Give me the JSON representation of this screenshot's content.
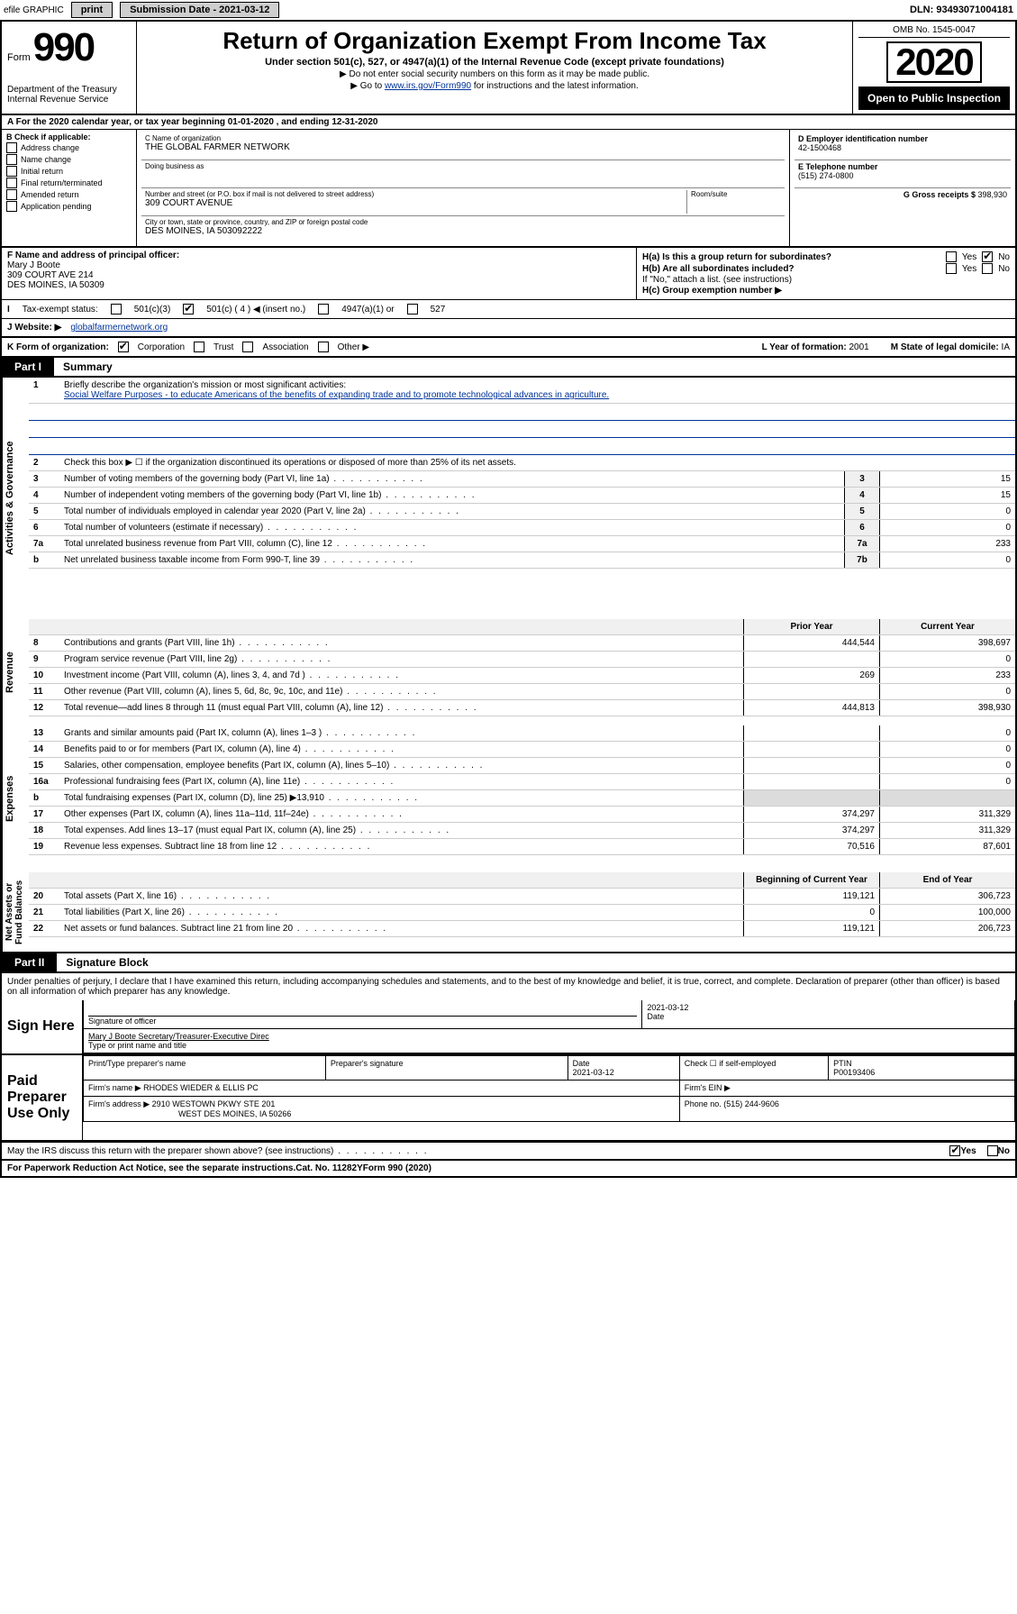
{
  "topbar": {
    "efile": "efile GRAPHIC",
    "print": "print",
    "submission": "Submission Date - 2021-03-12",
    "dln": "DLN: 93493071004181"
  },
  "header": {
    "form_label": "Form",
    "form_number": "990",
    "dept": "Department of the Treasury\nInternal Revenue Service",
    "title": "Return of Organization Exempt From Income Tax",
    "subtitle": "Under section 501(c), 527, or 4947(a)(1) of the Internal Revenue Code (except private foundations)",
    "note1": "Do not enter social security numbers on this form as it may be made public.",
    "note2_pre": "Go to ",
    "note2_link": "www.irs.gov/Form990",
    "note2_post": " for instructions and the latest information.",
    "omb": "OMB No. 1545-0047",
    "year": "2020",
    "public": "Open to Public Inspection"
  },
  "lineA": "A For the 2020 calendar year, or tax year beginning 01-01-2020   , and ending 12-31-2020",
  "sectionB": {
    "hdr": "B Check if applicable:",
    "opts": [
      "Address change",
      "Name change",
      "Initial return",
      "Final return/terminated",
      "Amended return",
      "Application pending"
    ],
    "c_name_lbl": "C Name of organization",
    "c_name": "THE GLOBAL FARMER NETWORK",
    "dba_lbl": "Doing business as",
    "street_lbl": "Number and street (or P.O. box if mail is not delivered to street address)",
    "room_lbl": "Room/suite",
    "street": "309 COURT AVENUE",
    "city_lbl": "City or town, state or province, country, and ZIP or foreign postal code",
    "city": "DES MOINES, IA  503092222",
    "d_lbl": "D Employer identification number",
    "d_val": "42-1500468",
    "e_lbl": "E Telephone number",
    "e_val": "(515) 274-0800",
    "g_lbl": "G Gross receipts $ ",
    "g_val": "398,930"
  },
  "rowF": {
    "f_lbl": "F  Name and address of principal officer:",
    "f_name": "Mary J Boote",
    "f_addr1": "309 COURT AVE 214",
    "f_addr2": "DES MOINES, IA  50309",
    "ha": "H(a)  Is this a group return for subordinates?",
    "ha_yes": "Yes",
    "ha_no": "No",
    "hb": "H(b)  Are all subordinates included?",
    "hb_note": "If \"No,\" attach a list. (see instructions)",
    "hc": "H(c)  Group exemption number ▶"
  },
  "rowI": {
    "label": "Tax-exempt status:",
    "o1": "501(c)(3)",
    "o2": "501(c) ( 4 ) ◀ (insert no.)",
    "o3": "4947(a)(1) or",
    "o4": "527"
  },
  "rowJ": {
    "label": "J    Website: ▶",
    "val": "globalfarmernetwork.org"
  },
  "rowK": {
    "label": "K Form of organization:",
    "o1": "Corporation",
    "o2": "Trust",
    "o3": "Association",
    "o4": "Other ▶",
    "l_lbl": "L Year of formation: ",
    "l_val": "2001",
    "m_lbl": "M State of legal domicile: ",
    "m_val": "IA"
  },
  "part1": {
    "tab": "Part I",
    "title": "Summary",
    "l1_lbl": "Briefly describe the organization's mission or most significant activities:",
    "l1_val": "Social Welfare Purposes - to educate Americans of the benefits of expanding trade and to promote technological advances in agriculture.",
    "l2": "Check this box ▶ ☐  if the organization discontinued its operations or disposed of more than 25% of its net assets.",
    "rows_gov": [
      {
        "n": "3",
        "t": "Number of voting members of the governing body (Part VI, line 1a)",
        "k": "3",
        "v": "15"
      },
      {
        "n": "4",
        "t": "Number of independent voting members of the governing body (Part VI, line 1b)",
        "k": "4",
        "v": "15"
      },
      {
        "n": "5",
        "t": "Total number of individuals employed in calendar year 2020 (Part V, line 2a)",
        "k": "5",
        "v": "0"
      },
      {
        "n": "6",
        "t": "Total number of volunteers (estimate if necessary)",
        "k": "6",
        "v": "0"
      },
      {
        "n": "7a",
        "t": "Total unrelated business revenue from Part VIII, column (C), line 12",
        "k": "7a",
        "v": "233"
      },
      {
        "n": "b",
        "t": "Net unrelated business taxable income from Form 990-T, line 39",
        "k": "7b",
        "v": "0"
      }
    ],
    "col_prior": "Prior Year",
    "col_curr": "Current Year",
    "rows_rev": [
      {
        "n": "8",
        "t": "Contributions and grants (Part VIII, line 1h)",
        "p": "444,544",
        "c": "398,697"
      },
      {
        "n": "9",
        "t": "Program service revenue (Part VIII, line 2g)",
        "p": "",
        "c": "0"
      },
      {
        "n": "10",
        "t": "Investment income (Part VIII, column (A), lines 3, 4, and 7d )",
        "p": "269",
        "c": "233"
      },
      {
        "n": "11",
        "t": "Other revenue (Part VIII, column (A), lines 5, 6d, 8c, 9c, 10c, and 11e)",
        "p": "",
        "c": "0"
      },
      {
        "n": "12",
        "t": "Total revenue—add lines 8 through 11 (must equal Part VIII, column (A), line 12)",
        "p": "444,813",
        "c": "398,930"
      }
    ],
    "rows_exp": [
      {
        "n": "13",
        "t": "Grants and similar amounts paid (Part IX, column (A), lines 1–3 )",
        "p": "",
        "c": "0"
      },
      {
        "n": "14",
        "t": "Benefits paid to or for members (Part IX, column (A), line 4)",
        "p": "",
        "c": "0"
      },
      {
        "n": "15",
        "t": "Salaries, other compensation, employee benefits (Part IX, column (A), lines 5–10)",
        "p": "",
        "c": "0"
      },
      {
        "n": "16a",
        "t": "Professional fundraising fees (Part IX, column (A), line 11e)",
        "p": "",
        "c": "0"
      },
      {
        "n": "b",
        "t": "Total fundraising expenses (Part IX, column (D), line 25) ▶13,910",
        "p": "gray",
        "c": "gray"
      },
      {
        "n": "17",
        "t": "Other expenses (Part IX, column (A), lines 11a–11d, 11f–24e)",
        "p": "374,297",
        "c": "311,329"
      },
      {
        "n": "18",
        "t": "Total expenses. Add lines 13–17 (must equal Part IX, column (A), line 25)",
        "p": "374,297",
        "c": "311,329"
      },
      {
        "n": "19",
        "t": "Revenue less expenses. Subtract line 18 from line 12",
        "p": "70,516",
        "c": "87,601"
      }
    ],
    "col_beg": "Beginning of Current Year",
    "col_end": "End of Year",
    "rows_net": [
      {
        "n": "20",
        "t": "Total assets (Part X, line 16)",
        "p": "119,121",
        "c": "306,723"
      },
      {
        "n": "21",
        "t": "Total liabilities (Part X, line 26)",
        "p": "0",
        "c": "100,000"
      },
      {
        "n": "22",
        "t": "Net assets or fund balances. Subtract line 21 from line 20",
        "p": "119,121",
        "c": "206,723"
      }
    ],
    "vlab_gov": "Activities & Governance",
    "vlab_rev": "Revenue",
    "vlab_exp": "Expenses",
    "vlab_net": "Net Assets or Fund Balances"
  },
  "part2": {
    "tab": "Part II",
    "title": "Signature Block",
    "decl": "Under penalties of perjury, I declare that I have examined this return, including accompanying schedules and statements, and to the best of my knowledge and belief, it is true, correct, and complete. Declaration of preparer (other than officer) is based on all information of which preparer has any knowledge.",
    "sign_here": "Sign Here",
    "sig_officer": "Signature of officer",
    "sig_date": "2021-03-12",
    "date_lbl": "Date",
    "officer_name": "Mary J Boote  Secretary/Treasurer-Executive Direc",
    "type_name": "Type or print name and title",
    "paid": "Paid Preparer Use Only",
    "prep_name_lbl": "Print/Type preparer's name",
    "prep_sig_lbl": "Preparer's signature",
    "prep_date_lbl": "Date",
    "prep_date": "2021-03-12",
    "check_self": "Check ☐ if self-employed",
    "ptin_lbl": "PTIN",
    "ptin": "P00193406",
    "firm_name_lbl": "Firm's name   ▶",
    "firm_name": "RHODES WIEDER & ELLIS PC",
    "firm_ein_lbl": "Firm's EIN ▶",
    "firm_addr_lbl": "Firm's address ▶",
    "firm_addr1": "2910 WESTOWN PKWY STE 201",
    "firm_addr2": "WEST DES MOINES, IA  50266",
    "phone_lbl": "Phone no. ",
    "phone": "(515) 244-9606"
  },
  "footer": {
    "discuss": "May the IRS discuss this return with the preparer shown above? (see instructions)",
    "yes": "Yes",
    "no": "No",
    "pra": "For Paperwork Reduction Act Notice, see the separate instructions.",
    "cat": "Cat. No. 11282Y",
    "form": "Form 990 (2020)"
  },
  "colors": {
    "link": "#003399",
    "black": "#000000",
    "gray_bg": "#dcdcdc"
  }
}
